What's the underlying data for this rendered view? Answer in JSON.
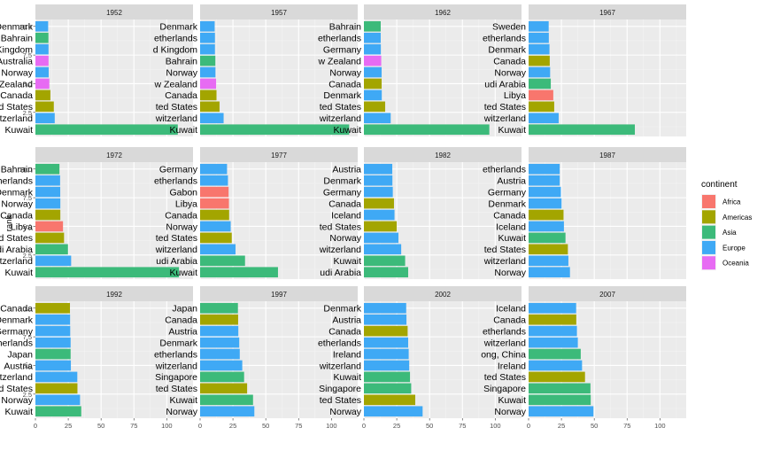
{
  "chart_data": {
    "type": "bar",
    "orientation": "horizontal",
    "facet_variable": "year",
    "grid": true,
    "legend_position": "right",
    "ylabel": "rank",
    "xlim": [
      0,
      120
    ],
    "ylim": [
      0.4,
      10.6
    ],
    "x_ticks": [
      "0",
      "25",
      "50",
      "75",
      "100"
    ],
    "x_tick_values": [
      0,
      25,
      50,
      75,
      100
    ],
    "y_ticks": [
      "2.5",
      "5.0",
      "7.5",
      "10.0"
    ],
    "y_tick_values": [
      2.5,
      5.0,
      7.5,
      10.0
    ],
    "legend": {
      "title": "continent",
      "items": [
        {
          "label": "Africa",
          "color": "#F8766D"
        },
        {
          "label": "Americas",
          "color": "#A3A500"
        },
        {
          "label": "Asia",
          "color": "#3CBA7A"
        },
        {
          "label": "Europe",
          "color": "#3FA9F5"
        },
        {
          "label": "Oceania",
          "color": "#E76BF3"
        }
      ]
    },
    "panels": [
      {
        "year": "1952",
        "bars": [
          {
            "rank": 10,
            "label": "Denmark",
            "value": 9.7,
            "continent": "Europe"
          },
          {
            "rank": 9,
            "label": "Bahrain",
            "value": 9.9,
            "continent": "Asia"
          },
          {
            "rank": 8,
            "label": "d Kingdom",
            "value": 9.98,
            "continent": "Europe"
          },
          {
            "rank": 7,
            "label": "Australia",
            "value": 10.0,
            "continent": "Oceania"
          },
          {
            "rank": 6,
            "label": "Norway",
            "value": 10.1,
            "continent": "Europe"
          },
          {
            "rank": 5,
            "label": "w Zealand",
            "value": 10.6,
            "continent": "Oceania"
          },
          {
            "rank": 4,
            "label": "Canada",
            "value": 11.4,
            "continent": "Americas"
          },
          {
            "rank": 3,
            "label": "ted States",
            "value": 14.0,
            "continent": "Americas"
          },
          {
            "rank": 2,
            "label": "witzerland",
            "value": 14.7,
            "continent": "Europe"
          },
          {
            "rank": 1,
            "label": "Kuwait",
            "value": 108.4,
            "continent": "Asia"
          }
        ]
      },
      {
        "year": "1957",
        "bars": [
          {
            "rank": 10,
            "label": "Denmark",
            "value": 11.1,
            "continent": "Europe"
          },
          {
            "rank": 9,
            "label": "etherlands",
            "value": 11.3,
            "continent": "Europe"
          },
          {
            "rank": 8,
            "label": "d Kingdom",
            "value": 11.3,
            "continent": "Europe"
          },
          {
            "rank": 7,
            "label": "Bahrain",
            "value": 11.6,
            "continent": "Asia"
          },
          {
            "rank": 6,
            "label": "Norway",
            "value": 11.7,
            "continent": "Europe"
          },
          {
            "rank": 5,
            "label": "w Zealand",
            "value": 12.2,
            "continent": "Oceania"
          },
          {
            "rank": 4,
            "label": "Canada",
            "value": 12.5,
            "continent": "Americas"
          },
          {
            "rank": 3,
            "label": "ted States",
            "value": 14.8,
            "continent": "Americas"
          },
          {
            "rank": 2,
            "label": "witzerland",
            "value": 17.9,
            "continent": "Europe"
          },
          {
            "rank": 1,
            "label": "Kuwait",
            "value": 113.5,
            "continent": "Asia"
          }
        ]
      },
      {
        "year": "1962",
        "bars": [
          {
            "rank": 10,
            "label": "Bahrain",
            "value": 12.8,
            "continent": "Asia"
          },
          {
            "rank": 9,
            "label": "etherlands",
            "value": 12.8,
            "continent": "Europe"
          },
          {
            "rank": 8,
            "label": "Germany",
            "value": 12.9,
            "continent": "Europe"
          },
          {
            "rank": 7,
            "label": "w Zealand",
            "value": 13.2,
            "continent": "Oceania"
          },
          {
            "rank": 6,
            "label": "Norway",
            "value": 13.5,
            "continent": "Europe"
          },
          {
            "rank": 5,
            "label": "Canada",
            "value": 13.5,
            "continent": "Americas"
          },
          {
            "rank": 4,
            "label": "Denmark",
            "value": 13.6,
            "continent": "Europe"
          },
          {
            "rank": 3,
            "label": "ted States",
            "value": 16.2,
            "continent": "Americas"
          },
          {
            "rank": 2,
            "label": "witzerland",
            "value": 20.4,
            "continent": "Europe"
          },
          {
            "rank": 1,
            "label": "Kuwait",
            "value": 95.5,
            "continent": "Asia"
          }
        ]
      },
      {
        "year": "1967",
        "bars": [
          {
            "rank": 10,
            "label": "Sweden",
            "value": 15.3,
            "continent": "Europe"
          },
          {
            "rank": 9,
            "label": "etherlands",
            "value": 15.4,
            "continent": "Europe"
          },
          {
            "rank": 8,
            "label": "Denmark",
            "value": 15.9,
            "continent": "Europe"
          },
          {
            "rank": 7,
            "label": "Canada",
            "value": 16.1,
            "continent": "Americas"
          },
          {
            "rank": 6,
            "label": "Norway",
            "value": 16.4,
            "continent": "Europe"
          },
          {
            "rank": 5,
            "label": "udi Arabia",
            "value": 16.9,
            "continent": "Asia"
          },
          {
            "rank": 4,
            "label": "Libya",
            "value": 18.8,
            "continent": "Africa"
          },
          {
            "rank": 3,
            "label": "ted States",
            "value": 19.5,
            "continent": "Americas"
          },
          {
            "rank": 2,
            "label": "witzerland",
            "value": 22.9,
            "continent": "Europe"
          },
          {
            "rank": 1,
            "label": "Kuwait",
            "value": 80.9,
            "continent": "Asia"
          }
        ]
      },
      {
        "year": "1972",
        "bars": [
          {
            "rank": 10,
            "label": "Bahrain",
            "value": 18.3,
            "continent": "Asia"
          },
          {
            "rank": 9,
            "label": "etherlands",
            "value": 18.8,
            "continent": "Europe"
          },
          {
            "rank": 8,
            "label": "Denmark",
            "value": 18.9,
            "continent": "Europe"
          },
          {
            "rank": 7,
            "label": "Norway",
            "value": 18.97,
            "continent": "Europe"
          },
          {
            "rank": 6,
            "label": "Canada",
            "value": 18.97,
            "continent": "Americas"
          },
          {
            "rank": 5,
            "label": "Libya",
            "value": 21.0,
            "continent": "Africa"
          },
          {
            "rank": 4,
            "label": "ted States",
            "value": 21.8,
            "continent": "Americas"
          },
          {
            "rank": 3,
            "label": "udi Arabia",
            "value": 24.8,
            "continent": "Asia"
          },
          {
            "rank": 2,
            "label": "witzerland",
            "value": 27.2,
            "continent": "Europe"
          },
          {
            "rank": 1,
            "label": "Kuwait",
            "value": 109.3,
            "continent": "Asia"
          }
        ]
      },
      {
        "year": "1977",
        "bars": [
          {
            "rank": 10,
            "label": "Germany",
            "value": 20.5,
            "continent": "Europe"
          },
          {
            "rank": 9,
            "label": "etherlands",
            "value": 21.2,
            "continent": "Europe"
          },
          {
            "rank": 8,
            "label": "Gabon",
            "value": 21.7,
            "continent": "Africa"
          },
          {
            "rank": 7,
            "label": "Libya",
            "value": 21.95,
            "continent": "Africa"
          },
          {
            "rank": 6,
            "label": "Canada",
            "value": 22.1,
            "continent": "Americas"
          },
          {
            "rank": 5,
            "label": "Norway",
            "value": 23.3,
            "continent": "Europe"
          },
          {
            "rank": 4,
            "label": "ted States",
            "value": 24.1,
            "continent": "Americas"
          },
          {
            "rank": 3,
            "label": "witzerland",
            "value": 26.98,
            "continent": "Europe"
          },
          {
            "rank": 2,
            "label": "udi Arabia",
            "value": 34.2,
            "continent": "Asia"
          },
          {
            "rank": 1,
            "label": "Kuwait",
            "value": 59.3,
            "continent": "Asia"
          }
        ]
      },
      {
        "year": "1982",
        "bars": [
          {
            "rank": 10,
            "label": "Austria",
            "value": 21.6,
            "continent": "Europe"
          },
          {
            "rank": 9,
            "label": "Denmark",
            "value": 21.7,
            "continent": "Europe"
          },
          {
            "rank": 8,
            "label": "Germany",
            "value": 22.0,
            "continent": "Europe"
          },
          {
            "rank": 7,
            "label": "Canada",
            "value": 22.9,
            "continent": "Americas"
          },
          {
            "rank": 6,
            "label": "Iceland",
            "value": 23.3,
            "continent": "Europe"
          },
          {
            "rank": 5,
            "label": "ted States",
            "value": 25.0,
            "continent": "Americas"
          },
          {
            "rank": 4,
            "label": "Norway",
            "value": 26.3,
            "continent": "Europe"
          },
          {
            "rank": 3,
            "label": "witzerland",
            "value": 28.4,
            "continent": "Europe"
          },
          {
            "rank": 2,
            "label": "Kuwait",
            "value": 31.4,
            "continent": "Asia"
          },
          {
            "rank": 1,
            "label": "udi Arabia",
            "value": 33.7,
            "continent": "Asia"
          }
        ]
      },
      {
        "year": "1987",
        "bars": [
          {
            "rank": 10,
            "label": "etherlands",
            "value": 23.7,
            "continent": "Europe"
          },
          {
            "rank": 9,
            "label": "Austria",
            "value": 23.7,
            "continent": "Europe"
          },
          {
            "rank": 8,
            "label": "Germany",
            "value": 24.6,
            "continent": "Europe"
          },
          {
            "rank": 7,
            "label": "Denmark",
            "value": 25.1,
            "continent": "Europe"
          },
          {
            "rank": 6,
            "label": "Canada",
            "value": 26.6,
            "continent": "Americas"
          },
          {
            "rank": 5,
            "label": "Iceland",
            "value": 26.9,
            "continent": "Europe"
          },
          {
            "rank": 4,
            "label": "Kuwait",
            "value": 28.1,
            "continent": "Asia"
          },
          {
            "rank": 3,
            "label": "ted States",
            "value": 29.9,
            "continent": "Americas"
          },
          {
            "rank": 2,
            "label": "witzerland",
            "value": 30.3,
            "continent": "Europe"
          },
          {
            "rank": 1,
            "label": "Norway",
            "value": 31.5,
            "continent": "Europe"
          }
        ]
      },
      {
        "year": "1992",
        "bars": [
          {
            "rank": 10,
            "label": "Canada",
            "value": 26.3,
            "continent": "Americas"
          },
          {
            "rank": 9,
            "label": "Denmark",
            "value": 26.4,
            "continent": "Europe"
          },
          {
            "rank": 8,
            "label": "Germany",
            "value": 26.5,
            "continent": "Europe"
          },
          {
            "rank": 7,
            "label": "etherlands",
            "value": 26.8,
            "continent": "Europe"
          },
          {
            "rank": 6,
            "label": "Japan",
            "value": 26.8,
            "continent": "Asia"
          },
          {
            "rank": 5,
            "label": "Austria",
            "value": 27.0,
            "continent": "Europe"
          },
          {
            "rank": 4,
            "label": "witzerland",
            "value": 31.9,
            "continent": "Europe"
          },
          {
            "rank": 3,
            "label": "ted States",
            "value": 32.0,
            "continent": "Americas"
          },
          {
            "rank": 2,
            "label": "Norway",
            "value": 33.97,
            "continent": "Europe"
          },
          {
            "rank": 1,
            "label": "Kuwait",
            "value": 34.9,
            "continent": "Asia"
          }
        ]
      },
      {
        "year": "1997",
        "bars": [
          {
            "rank": 10,
            "label": "Japan",
            "value": 28.8,
            "continent": "Asia"
          },
          {
            "rank": 9,
            "label": "Canada",
            "value": 28.95,
            "continent": "Americas"
          },
          {
            "rank": 8,
            "label": "Austria",
            "value": 29.1,
            "continent": "Europe"
          },
          {
            "rank": 7,
            "label": "Denmark",
            "value": 29.8,
            "continent": "Europe"
          },
          {
            "rank": 6,
            "label": "etherlands",
            "value": 30.2,
            "continent": "Europe"
          },
          {
            "rank": 5,
            "label": "witzerland",
            "value": 32.1,
            "continent": "Europe"
          },
          {
            "rank": 4,
            "label": "Singapore",
            "value": 33.5,
            "continent": "Asia"
          },
          {
            "rank": 3,
            "label": "ted States",
            "value": 35.8,
            "continent": "Americas"
          },
          {
            "rank": 2,
            "label": "Kuwait",
            "value": 40.3,
            "continent": "Asia"
          },
          {
            "rank": 1,
            "label": "Norway",
            "value": 41.3,
            "continent": "Europe"
          }
        ]
      },
      {
        "year": "2002",
        "bars": [
          {
            "rank": 10,
            "label": "Denmark",
            "value": 32.2,
            "continent": "Europe"
          },
          {
            "rank": 9,
            "label": "Austria",
            "value": 32.4,
            "continent": "Europe"
          },
          {
            "rank": 8,
            "label": "Canada",
            "value": 33.3,
            "continent": "Americas"
          },
          {
            "rank": 7,
            "label": "etherlands",
            "value": 33.7,
            "continent": "Europe"
          },
          {
            "rank": 6,
            "label": "Ireland",
            "value": 34.1,
            "continent": "Europe"
          },
          {
            "rank": 5,
            "label": "witzerland",
            "value": 34.5,
            "continent": "Europe"
          },
          {
            "rank": 4,
            "label": "Kuwait",
            "value": 35.1,
            "continent": "Asia"
          },
          {
            "rank": 3,
            "label": "Singapore",
            "value": 36.0,
            "continent": "Asia"
          },
          {
            "rank": 2,
            "label": "ted States",
            "value": 39.1,
            "continent": "Americas"
          },
          {
            "rank": 1,
            "label": "Norway",
            "value": 44.7,
            "continent": "Europe"
          }
        ]
      },
      {
        "year": "2007",
        "bars": [
          {
            "rank": 10,
            "label": "Iceland",
            "value": 36.2,
            "continent": "Europe"
          },
          {
            "rank": 9,
            "label": "Canada",
            "value": 36.3,
            "continent": "Americas"
          },
          {
            "rank": 8,
            "label": "etherlands",
            "value": 36.8,
            "continent": "Europe"
          },
          {
            "rank": 7,
            "label": "witzerland",
            "value": 37.5,
            "continent": "Europe"
          },
          {
            "rank": 6,
            "label": "ong, China",
            "value": 39.7,
            "continent": "Asia"
          },
          {
            "rank": 5,
            "label": "Ireland",
            "value": 40.7,
            "continent": "Europe"
          },
          {
            "rank": 4,
            "label": "ted States",
            "value": 42.95,
            "continent": "Americas"
          },
          {
            "rank": 3,
            "label": "Singapore",
            "value": 47.1,
            "continent": "Asia"
          },
          {
            "rank": 2,
            "label": "Kuwait",
            "value": 47.3,
            "continent": "Asia"
          },
          {
            "rank": 1,
            "label": "Norway",
            "value": 49.4,
            "continent": "Europe"
          }
        ]
      }
    ]
  }
}
